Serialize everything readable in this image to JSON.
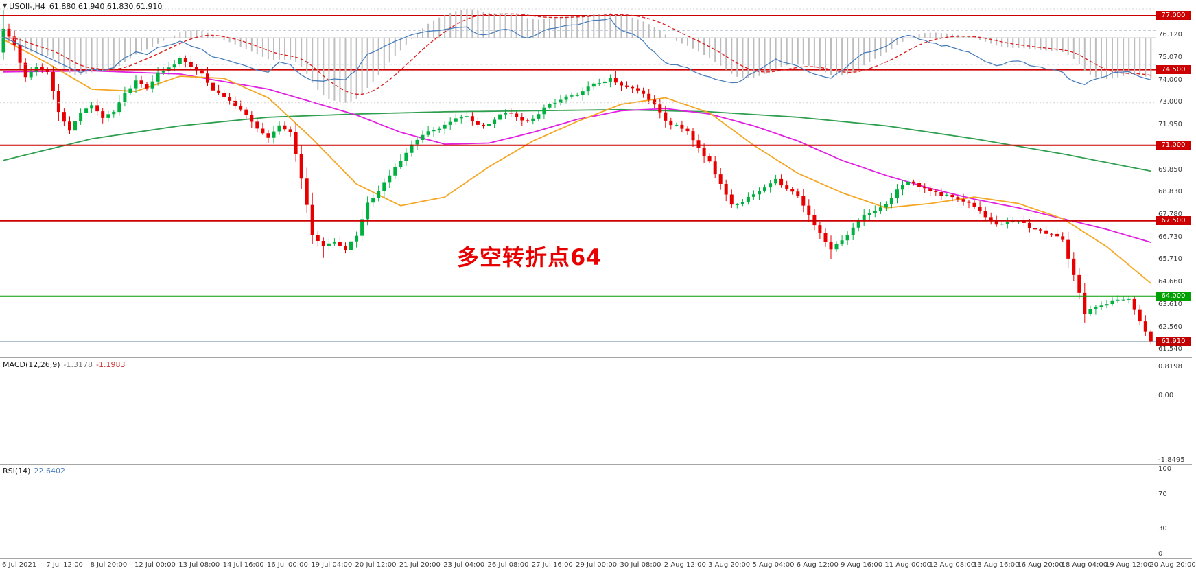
{
  "header": {
    "dropdown_icon": "▼",
    "symbol": "USOIl-,H4",
    "ohlc": "61.880 61.940 61.830 61.910"
  },
  "colors": {
    "up": "#00b140",
    "down": "#e80000",
    "hline_red": "#cc0000",
    "hline_green": "#00a000",
    "ma_green": "#2e9e4f",
    "ma_magenta": "#e020e0",
    "ma_orange": "#f5a623",
    "macd_signal": "#dd2222",
    "rsi_line": "#4a7ebb",
    "annotation": "#e80000",
    "badge_current": "#c00000"
  },
  "chart_data": {
    "type": "candlestick",
    "symbol": "USOIl-",
    "timeframe": "H4",
    "title": "USOIl-,H4",
    "bars_total": 209,
    "bars_per_time_label": 8,
    "y_range": [
      61.45,
      77.35
    ],
    "close_anchors": [
      [
        0,
        76.4
      ],
      [
        2,
        75.6
      ],
      [
        4,
        74.1
      ],
      [
        6,
        74.6
      ],
      [
        8,
        74.4
      ],
      [
        10,
        72.6
      ],
      [
        12,
        71.7
      ],
      [
        14,
        72.5
      ],
      [
        16,
        72.9
      ],
      [
        18,
        72.3
      ],
      [
        20,
        72.6
      ],
      [
        22,
        73.4
      ],
      [
        24,
        74.0
      ],
      [
        26,
        73.6
      ],
      [
        28,
        74.4
      ],
      [
        30,
        74.6
      ],
      [
        32,
        75.0
      ],
      [
        34,
        74.6
      ],
      [
        36,
        74.3
      ],
      [
        38,
        73.6
      ],
      [
        40,
        73.3
      ],
      [
        42,
        72.8
      ],
      [
        44,
        72.4
      ],
      [
        46,
        71.8
      ],
      [
        48,
        71.4
      ],
      [
        50,
        71.9
      ],
      [
        52,
        71.6
      ],
      [
        54,
        69.5
      ],
      [
        56,
        66.9
      ],
      [
        58,
        66.3
      ],
      [
        60,
        66.5
      ],
      [
        62,
        66.2
      ],
      [
        64,
        66.8
      ],
      [
        66,
        68.3
      ],
      [
        68,
        68.9
      ],
      [
        70,
        69.6
      ],
      [
        72,
        70.3
      ],
      [
        74,
        71.0
      ],
      [
        76,
        71.5
      ],
      [
        78,
        71.7
      ],
      [
        80,
        71.9
      ],
      [
        82,
        72.2
      ],
      [
        84,
        72.3
      ],
      [
        86,
        71.9
      ],
      [
        88,
        72.0
      ],
      [
        90,
        72.4
      ],
      [
        92,
        72.5
      ],
      [
        94,
        72.1
      ],
      [
        96,
        72.2
      ],
      [
        98,
        72.7
      ],
      [
        100,
        73.0
      ],
      [
        102,
        73.2
      ],
      [
        104,
        73.3
      ],
      [
        106,
        73.7
      ],
      [
        108,
        73.9
      ],
      [
        110,
        74.1
      ],
      [
        112,
        73.8
      ],
      [
        114,
        73.6
      ],
      [
        116,
        73.4
      ],
      [
        118,
        72.9
      ],
      [
        120,
        72.1
      ],
      [
        122,
        71.9
      ],
      [
        124,
        71.6
      ],
      [
        126,
        70.9
      ],
      [
        128,
        70.2
      ],
      [
        130,
        69.2
      ],
      [
        132,
        68.2
      ],
      [
        134,
        68.4
      ],
      [
        136,
        68.7
      ],
      [
        138,
        69.0
      ],
      [
        140,
        69.4
      ],
      [
        142,
        69.0
      ],
      [
        144,
        68.7
      ],
      [
        146,
        67.8
      ],
      [
        148,
        66.9
      ],
      [
        150,
        66.2
      ],
      [
        152,
        66.6
      ],
      [
        154,
        67.2
      ],
      [
        156,
        67.8
      ],
      [
        158,
        68.0
      ],
      [
        160,
        68.3
      ],
      [
        162,
        68.9
      ],
      [
        164,
        69.3
      ],
      [
        166,
        69.1
      ],
      [
        168,
        68.9
      ],
      [
        170,
        68.7
      ],
      [
        172,
        68.6
      ],
      [
        174,
        68.4
      ],
      [
        176,
        68.2
      ],
      [
        178,
        67.7
      ],
      [
        180,
        67.3
      ],
      [
        182,
        67.4
      ],
      [
        184,
        67.5
      ],
      [
        186,
        67.2
      ],
      [
        188,
        67.0
      ],
      [
        190,
        66.9
      ],
      [
        192,
        66.6
      ],
      [
        194,
        65.0
      ],
      [
        196,
        63.2
      ],
      [
        198,
        63.5
      ],
      [
        200,
        63.7
      ],
      [
        202,
        63.8
      ],
      [
        204,
        63.9
      ],
      [
        206,
        62.8
      ],
      [
        208,
        61.91
      ]
    ],
    "ma_lines": [
      {
        "name": "ma-slow-green-line",
        "color": "#2e9e4f",
        "anchors": [
          [
            0,
            70.3
          ],
          [
            16,
            71.3
          ],
          [
            32,
            71.9
          ],
          [
            48,
            72.3
          ],
          [
            64,
            72.45
          ],
          [
            80,
            72.55
          ],
          [
            96,
            72.6
          ],
          [
            112,
            72.65
          ],
          [
            128,
            72.55
          ],
          [
            144,
            72.3
          ],
          [
            160,
            71.9
          ],
          [
            176,
            71.3
          ],
          [
            192,
            70.6
          ],
          [
            208,
            69.8
          ]
        ]
      },
      {
        "name": "ma-mid-magenta-line",
        "color": "#e020e0",
        "anchors": [
          [
            0,
            74.4
          ],
          [
            16,
            74.45
          ],
          [
            32,
            74.3
          ],
          [
            48,
            73.6
          ],
          [
            64,
            72.4
          ],
          [
            72,
            71.6
          ],
          [
            80,
            71.05
          ],
          [
            88,
            71.1
          ],
          [
            96,
            71.6
          ],
          [
            104,
            72.2
          ],
          [
            112,
            72.6
          ],
          [
            120,
            72.7
          ],
          [
            128,
            72.45
          ],
          [
            136,
            71.9
          ],
          [
            144,
            71.2
          ],
          [
            152,
            70.3
          ],
          [
            160,
            69.6
          ],
          [
            168,
            69.0
          ],
          [
            176,
            68.5
          ],
          [
            184,
            68.1
          ],
          [
            192,
            67.6
          ],
          [
            200,
            67.1
          ],
          [
            208,
            66.5
          ]
        ]
      },
      {
        "name": "ma-fast-orange-line",
        "color": "#f5a623",
        "anchors": [
          [
            0,
            75.9
          ],
          [
            8,
            74.8
          ],
          [
            16,
            73.6
          ],
          [
            24,
            73.5
          ],
          [
            32,
            74.2
          ],
          [
            40,
            74.1
          ],
          [
            48,
            73.2
          ],
          [
            56,
            71.3
          ],
          [
            64,
            69.2
          ],
          [
            72,
            68.2
          ],
          [
            80,
            68.6
          ],
          [
            88,
            70.0
          ],
          [
            96,
            71.2
          ],
          [
            104,
            72.1
          ],
          [
            112,
            72.9
          ],
          [
            120,
            73.2
          ],
          [
            128,
            72.5
          ],
          [
            136,
            71.0
          ],
          [
            144,
            69.7
          ],
          [
            152,
            68.8
          ],
          [
            160,
            68.1
          ],
          [
            168,
            68.3
          ],
          [
            176,
            68.6
          ],
          [
            184,
            68.3
          ],
          [
            192,
            67.6
          ],
          [
            200,
            66.3
          ],
          [
            208,
            64.6
          ]
        ]
      }
    ],
    "hlines": [
      {
        "price": 77.0,
        "label": "77.000",
        "color": "#cc0000"
      },
      {
        "price": 74.5,
        "label": "74.500",
        "color": "#cc0000"
      },
      {
        "price": 71.0,
        "label": "71.000",
        "color": "#cc0000"
      },
      {
        "price": 67.5,
        "label": "67.500",
        "color": "#cc0000"
      },
      {
        "price": 64.0,
        "label": "64.000",
        "color": "#00a000"
      }
    ],
    "current_price": {
      "value": 61.91,
      "label": "61.910"
    },
    "price_axis_ticks": [
      "76.120",
      "75.070",
      "74.000",
      "73.000",
      "71.950",
      "69.850",
      "68.830",
      "67.780",
      "66.730",
      "65.710",
      "64.660",
      "63.610",
      "62.560",
      "61.540"
    ],
    "time_axis": [
      "6 Jul 2021",
      "7 Jul 12:00",
      "8 Jul 20:00",
      "12 Jul 00:00",
      "13 Jul 08:00",
      "14 Jul 16:00",
      "16 Jul 00:00",
      "19 Jul 04:00",
      "20 Jul 12:00",
      "21 Jul 20:00",
      "23 Jul 04:00",
      "26 Jul 08:00",
      "27 Jul 16:00",
      "29 Jul 00:00",
      "30 Jul 08:00",
      "2 Aug 12:00",
      "3 Aug 20:00",
      "5 Aug 04:00",
      "6 Aug 12:00",
      "9 Aug 16:00",
      "11 Aug 00:00",
      "12 Aug 08:00",
      "13 Aug 16:00",
      "16 Aug 20:00",
      "18 Aug 04:00",
      "19 Aug 12:00",
      "20 Aug 20:00"
    ],
    "macd": {
      "label": "MACD(12,26,9)",
      "value_main": "-1.3178",
      "value_signal": "-1.1983",
      "params": [
        12,
        26,
        9
      ],
      "axis_ticks": [
        "0.8198",
        "0.00",
        "-1.8495"
      ],
      "range": [
        -1.8495,
        0.8198
      ]
    },
    "rsi": {
      "label": "RSI(14)",
      "value": "22.6402",
      "period": 14,
      "levels": [
        70,
        30
      ],
      "axis_ticks": [
        "100",
        "70",
        "30",
        "0"
      ]
    },
    "annotation": {
      "text": "多空转折点64",
      "color": "#e80000"
    }
  }
}
